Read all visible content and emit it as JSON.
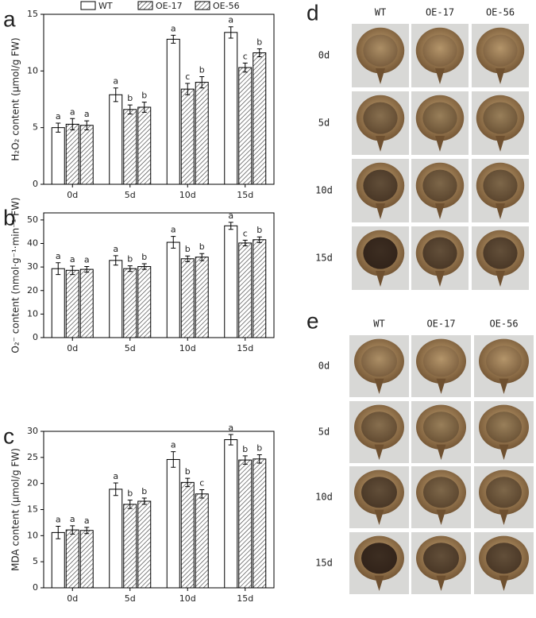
{
  "chart_data": [
    {
      "type": "bar",
      "panel_label": "a",
      "ylabel": "H₂O₂ content (μmol/g FW)",
      "legend": "top",
      "categories": [
        "0d",
        "5d",
        "10d",
        "15d"
      ],
      "ylim": [
        0,
        15
      ],
      "yticks": [
        0,
        5,
        10,
        15
      ],
      "series": [
        {
          "name": "WT",
          "color": "#ffffff",
          "hatch": false,
          "values": [
            5.0,
            7.9,
            12.8,
            13.4
          ],
          "errors": [
            0.4,
            0.6,
            0.35,
            0.5
          ],
          "letters": [
            "a",
            "a",
            "a",
            "a"
          ]
        },
        {
          "name": "OE-17",
          "color": "#ffffff",
          "hatch": true,
          "values": [
            5.3,
            6.6,
            8.4,
            10.3
          ],
          "errors": [
            0.5,
            0.4,
            0.5,
            0.4
          ],
          "letters": [
            "a",
            "b",
            "c",
            "c"
          ]
        },
        {
          "name": "OE-56",
          "color": "#ffffff",
          "hatch": true,
          "values": [
            5.2,
            6.8,
            9.0,
            11.6
          ],
          "errors": [
            0.4,
            0.45,
            0.5,
            0.35
          ],
          "letters": [
            "a",
            "b",
            "b",
            "b"
          ]
        }
      ]
    },
    {
      "type": "bar",
      "panel_label": "b",
      "ylabel": "O₂⁻ content (nmol·g⁻¹·min⁻¹ FW)",
      "categories": [
        "0d",
        "5d",
        "10d",
        "15d"
      ],
      "ylim": [
        0,
        53
      ],
      "yticks": [
        0,
        10,
        20,
        30,
        40,
        50
      ],
      "series": [
        {
          "name": "WT",
          "color": "#ffffff",
          "hatch": false,
          "values": [
            29.3,
            32.8,
            40.5,
            47.5
          ],
          "errors": [
            2.5,
            2.0,
            2.5,
            1.5
          ],
          "letters": [
            "a",
            "a",
            "a",
            "a"
          ]
        },
        {
          "name": "OE-17",
          "color": "#ffffff",
          "hatch": true,
          "values": [
            28.6,
            29.3,
            33.5,
            40.2
          ],
          "errors": [
            1.8,
            1.2,
            1.2,
            1.2
          ],
          "letters": [
            "a",
            "b",
            "b",
            "c"
          ]
        },
        {
          "name": "OE-56",
          "color": "#ffffff",
          "hatch": true,
          "values": [
            29.0,
            30.2,
            34.2,
            41.6
          ],
          "errors": [
            1.2,
            1.2,
            1.5,
            1.2
          ],
          "letters": [
            "a",
            "b",
            "b",
            "b"
          ]
        }
      ]
    },
    {
      "type": "bar",
      "panel_label": "c",
      "ylabel": "MDA content (μmol/g FW)",
      "categories": [
        "0d",
        "5d",
        "10d",
        "15d"
      ],
      "ylim": [
        0,
        30
      ],
      "yticks": [
        0,
        5,
        10,
        15,
        20,
        25,
        30
      ],
      "series": [
        {
          "name": "WT",
          "color": "#ffffff",
          "hatch": false,
          "values": [
            10.6,
            18.9,
            24.6,
            28.4
          ],
          "errors": [
            1.2,
            1.2,
            1.5,
            1.0
          ],
          "letters": [
            "a",
            "a",
            "a",
            "a"
          ]
        },
        {
          "name": "OE-17",
          "color": "#ffffff",
          "hatch": true,
          "values": [
            11.1,
            16.0,
            20.2,
            24.5
          ],
          "errors": [
            0.8,
            0.8,
            0.8,
            0.8
          ],
          "letters": [
            "a",
            "b",
            "b",
            "b"
          ]
        },
        {
          "name": "OE-56",
          "color": "#ffffff",
          "hatch": true,
          "values": [
            11.0,
            16.6,
            18.0,
            24.7
          ],
          "errors": [
            0.6,
            0.6,
            0.8,
            0.8
          ],
          "letters": [
            "a",
            "b",
            "c",
            "b"
          ]
        }
      ]
    }
  ],
  "photo_panels": [
    {
      "panel_label": "d",
      "columns": [
        "WT",
        "OE-17",
        "OE-56"
      ],
      "rows": [
        "0d",
        "5d",
        "10d",
        "15d"
      ]
    },
    {
      "panel_label": "e",
      "columns": [
        "WT",
        "OE-17",
        "OE-56"
      ],
      "rows": [
        "0d",
        "5d",
        "10d",
        "15d"
      ]
    }
  ]
}
